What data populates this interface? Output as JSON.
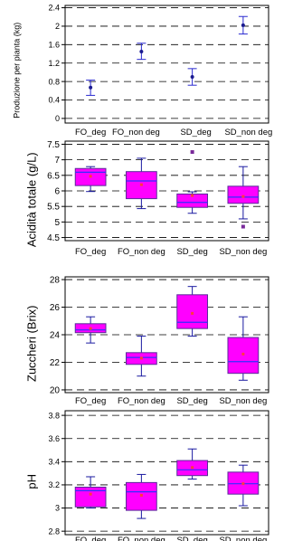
{
  "chart_data": [
    {
      "type": "errorbar",
      "ylabel": "Produzione per pianta (kg)",
      "ylim": [
        -0.1,
        2.45
      ],
      "yticks": [
        0,
        0.4,
        0.8,
        1.2,
        1.6,
        2,
        2.4
      ],
      "ytick_labels": [
        "0",
        "0.4",
        "0.8",
        "1.2",
        "1.6",
        "2",
        "2.4"
      ],
      "grid": true,
      "categories": [
        "FO_deg",
        "FO_non deg",
        "SD_deg",
        "SD_non deg"
      ],
      "means": [
        0.67,
        1.45,
        0.9,
        2.02
      ],
      "lower": [
        0.5,
        1.28,
        0.72,
        1.83
      ],
      "upper": [
        0.83,
        1.63,
        1.08,
        2.21
      ],
      "colors": {
        "marker": "#1a1a90",
        "bar": "#2a2ad0"
      }
    },
    {
      "type": "box",
      "ylabel": "Acidità totale (g/L)",
      "ylim": [
        4.4,
        7.6
      ],
      "yticks": [
        4.5,
        5,
        5.5,
        6,
        6.5,
        7,
        7.5
      ],
      "ytick_labels": [
        "4.5",
        "5",
        "5.5",
        "6",
        "6.5",
        "7",
        "7.5"
      ],
      "grid": true,
      "categories": [
        "FO_deg",
        "FO_non deg",
        "SD_deg",
        "SD_non deg"
      ],
      "boxes": [
        {
          "min": 5.98,
          "q1": 6.17,
          "median": 6.6,
          "q3": 6.72,
          "max": 6.78,
          "mean": 6.47,
          "outliers": []
        },
        {
          "min": 5.43,
          "q1": 5.75,
          "median": 6.32,
          "q3": 6.62,
          "max": 7.05,
          "mean": 6.2,
          "outliers": []
        },
        {
          "min": 5.28,
          "q1": 5.47,
          "median": 5.63,
          "q3": 5.9,
          "max": 5.97,
          "mean": 5.85,
          "outliers": [
            7.25
          ]
        },
        {
          "min": 5.1,
          "q1": 5.6,
          "median": 5.8,
          "q3": 6.15,
          "max": 6.78,
          "mean": 5.82,
          "outliers": [
            4.85
          ]
        }
      ],
      "colors": {
        "box": "#ff00ff",
        "median": "#3030ff",
        "whisker": "#1a1aa0",
        "outlier": "#7a2a9a"
      }
    },
    {
      "type": "box",
      "ylabel": "Zuccheri (Brix)",
      "ylim": [
        19.8,
        28.2
      ],
      "yticks": [
        20,
        22,
        24,
        26,
        28
      ],
      "ytick_labels": [
        "20",
        "22",
        "24",
        "26",
        "28"
      ],
      "grid": true,
      "categories": [
        "FO_deg",
        "FO_non deg",
        "SD_deg",
        "SD_non deg"
      ],
      "boxes": [
        {
          "min": 23.4,
          "q1": 24.15,
          "median": 24.35,
          "q3": 24.8,
          "max": 25.3,
          "mean": 24.45,
          "outliers": []
        },
        {
          "min": 21.0,
          "q1": 21.85,
          "median": 22.35,
          "q3": 22.7,
          "max": 23.9,
          "mean": 22.3,
          "outliers": []
        },
        {
          "min": 23.9,
          "q1": 24.45,
          "median": 24.9,
          "q3": 26.9,
          "max": 27.5,
          "mean": 25.55,
          "outliers": []
        },
        {
          "min": 20.7,
          "q1": 21.2,
          "median": 22.05,
          "q3": 23.8,
          "max": 25.3,
          "mean": 22.6,
          "outliers": []
        }
      ],
      "colors": {
        "box": "#ff00ff",
        "median": "#3030ff",
        "whisker": "#1a1aa0"
      }
    },
    {
      "type": "box",
      "ylabel": "pH",
      "ylim": [
        2.77,
        3.84
      ],
      "yticks": [
        2.8,
        3,
        3.2,
        3.4,
        3.6,
        3.8
      ],
      "ytick_labels": [
        "2.8",
        "3",
        "3.2",
        "3.4",
        "3.6",
        "3.8"
      ],
      "grid": true,
      "categories": [
        "FO_deg",
        "FO_non deg",
        "SD_deg",
        "SD_non deg"
      ],
      "boxes": [
        {
          "min": 3.0,
          "q1": 3.01,
          "median": 3.15,
          "q3": 3.18,
          "max": 3.27,
          "mean": 3.12,
          "outliers": []
        },
        {
          "min": 2.91,
          "q1": 2.98,
          "median": 3.14,
          "q3": 3.22,
          "max": 3.29,
          "mean": 3.11,
          "outliers": []
        },
        {
          "min": 3.25,
          "q1": 3.28,
          "median": 3.33,
          "q3": 3.41,
          "max": 3.51,
          "mean": 3.35,
          "outliers": []
        },
        {
          "min": 3.02,
          "q1": 3.12,
          "median": 3.21,
          "q3": 3.31,
          "max": 3.37,
          "mean": 3.21,
          "outliers": []
        }
      ],
      "colors": {
        "box": "#ff00ff",
        "median": "#3030ff",
        "whisker": "#1a1aa0"
      }
    }
  ]
}
